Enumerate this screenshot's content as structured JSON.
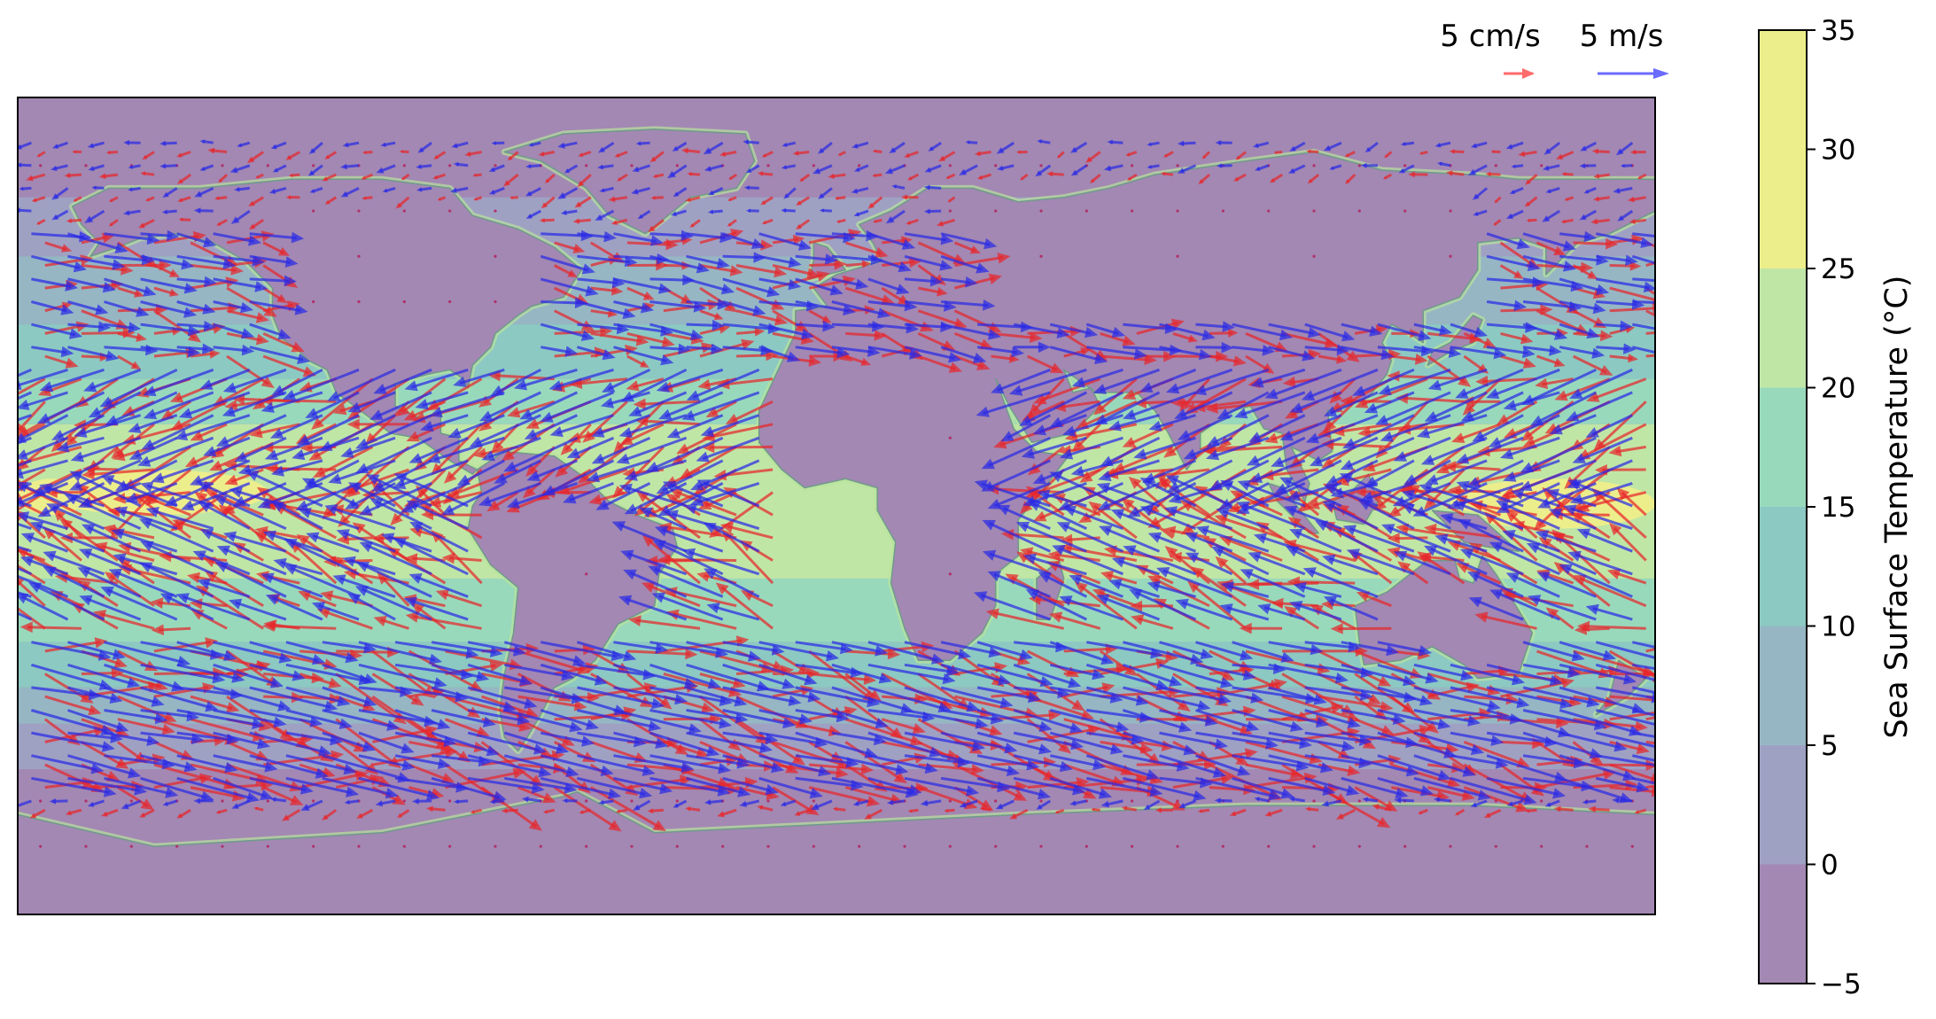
{
  "chart_data": {
    "type": "heatmap",
    "title": "",
    "xlabel": "",
    "ylabel": "",
    "xlim": [
      -180,
      180
    ],
    "ylim": [
      -90,
      90
    ],
    "grid": false,
    "colorbar": {
      "label": "Sea Surface Temperature (°C)",
      "ticks": [
        "35",
        "30",
        "25",
        "20",
        "15",
        "10",
        "5",
        "0",
        "−5"
      ],
      "levels": [
        -5,
        0,
        5,
        10,
        15,
        20,
        25,
        30,
        35
      ],
      "colors": [
        "#a288b3",
        "#9fa1c3",
        "#96b6c4",
        "#8cc9c2",
        "#98d9bc",
        "#c0e6a6",
        "#ecee8c",
        "#ecee8c"
      ]
    },
    "land_color": "#a288b3",
    "quiver_keys": [
      {
        "label": "5 cm/s",
        "color": "#ff6b6b",
        "series": "ocean-current"
      },
      {
        "label": "5 m/s",
        "color": "#6b6bff",
        "series": "wind"
      }
    ],
    "series_colors": {
      "current": "#e8262b",
      "wind": "#2a2ae6"
    }
  }
}
